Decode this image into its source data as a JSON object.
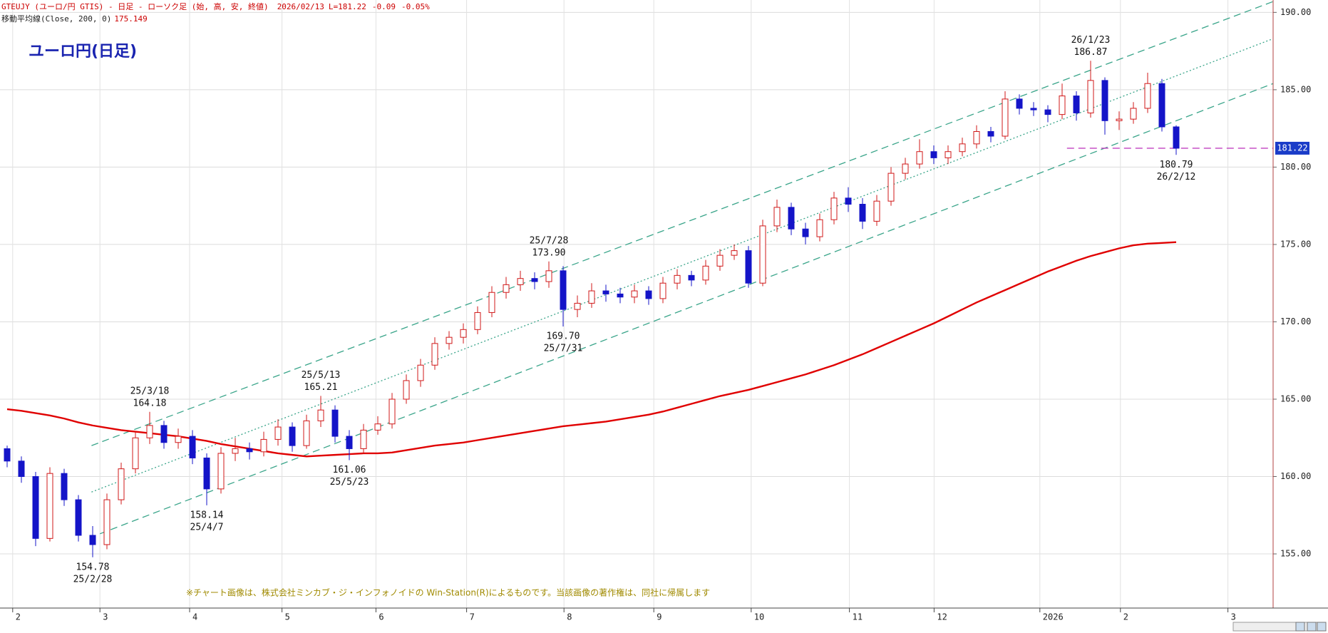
{
  "header": {
    "symbol": "GTEUJY (ユーロ/円 GTIS) - 日足 - ローソク足 (始, 高, 安, 終値)",
    "date": "2026/02/13",
    "last": "L=181.22",
    "change": "-0.09",
    "change_pct": "-0.05%"
  },
  "chart_data": {
    "type": "candlestick",
    "title": "ユーロ円(日足)",
    "open": [
      161.8,
      161.0,
      160.0,
      156.0,
      160.2,
      158.5,
      156.2,
      155.6,
      158.5,
      160.5,
      162.5,
      163.3,
      162.2,
      162.6,
      161.2,
      159.2,
      161.5,
      161.8,
      161.6,
      162.4,
      163.2,
      162.0,
      163.6,
      164.3,
      162.6,
      161.8,
      163.0,
      163.4,
      165.0,
      166.2,
      167.2,
      168.6,
      169.0,
      169.5,
      170.6,
      171.9,
      172.4,
      172.8,
      172.6,
      173.3,
      170.8,
      171.2,
      172.0,
      171.8,
      171.6,
      172.0,
      171.5,
      172.5,
      173.0,
      172.7,
      173.6,
      174.3,
      174.6,
      172.5,
      176.2,
      177.4,
      176.0,
      175.5,
      176.6,
      178.0,
      177.6,
      176.5,
      177.8,
      179.6,
      180.2,
      181.0,
      180.6,
      181.0,
      181.5,
      182.3,
      182.0,
      184.4,
      183.8,
      183.7,
      183.4,
      184.6,
      183.5,
      185.6,
      183.0,
      183.1,
      183.8,
      185.4,
      182.6
    ],
    "high": [
      162.0,
      161.3,
      160.3,
      160.6,
      160.5,
      158.8,
      156.8,
      158.9,
      160.9,
      162.9,
      164.18,
      163.6,
      163.1,
      163.0,
      161.5,
      161.9,
      162.5,
      162.2,
      162.9,
      163.7,
      163.5,
      164.0,
      165.21,
      164.6,
      163.0,
      163.4,
      163.9,
      165.4,
      166.6,
      167.6,
      169.0,
      169.4,
      169.9,
      171.0,
      172.3,
      172.9,
      173.3,
      173.2,
      173.9,
      173.6,
      171.7,
      172.5,
      172.4,
      172.2,
      172.4,
      172.3,
      172.9,
      173.4,
      173.3,
      174.0,
      174.7,
      175.0,
      174.9,
      176.6,
      177.9,
      177.7,
      176.4,
      177.0,
      178.4,
      178.7,
      178.0,
      178.2,
      180.0,
      180.6,
      181.8,
      181.4,
      181.4,
      181.9,
      182.7,
      182.6,
      184.9,
      184.7,
      184.2,
      184.0,
      185.4,
      184.9,
      186.87,
      185.8,
      183.6,
      184.2,
      186.1,
      185.7,
      182.7
    ],
    "low": [
      160.6,
      159.6,
      155.5,
      155.8,
      158.1,
      155.8,
      154.78,
      155.3,
      158.2,
      160.2,
      162.1,
      161.8,
      161.8,
      160.8,
      158.14,
      158.9,
      161.0,
      161.1,
      161.3,
      162.0,
      161.6,
      161.8,
      163.2,
      162.2,
      161.06,
      161.5,
      162.7,
      163.1,
      164.7,
      165.8,
      166.9,
      168.2,
      168.6,
      169.2,
      170.3,
      171.5,
      172.0,
      172.1,
      172.2,
      169.7,
      170.3,
      170.9,
      171.3,
      171.2,
      171.2,
      171.1,
      171.2,
      172.1,
      172.3,
      172.4,
      173.3,
      174.0,
      172.2,
      172.3,
      175.8,
      175.6,
      175.0,
      175.2,
      176.3,
      177.1,
      176.0,
      176.2,
      177.5,
      179.2,
      179.9,
      180.2,
      180.2,
      180.7,
      181.2,
      181.6,
      181.8,
      183.4,
      183.3,
      182.9,
      183.1,
      183.0,
      183.2,
      182.1,
      182.4,
      182.8,
      183.5,
      182.3,
      180.79
    ],
    "close": [
      161.0,
      160.0,
      156.0,
      160.2,
      158.5,
      156.2,
      155.6,
      158.5,
      160.5,
      162.5,
      163.3,
      162.2,
      162.6,
      161.2,
      159.2,
      161.5,
      161.8,
      161.6,
      162.4,
      163.2,
      162.0,
      163.6,
      164.3,
      162.6,
      161.8,
      163.0,
      163.4,
      165.0,
      166.2,
      167.2,
      168.6,
      169.0,
      169.5,
      170.6,
      171.9,
      172.4,
      172.8,
      172.6,
      173.3,
      170.8,
      171.2,
      172.0,
      171.8,
      171.6,
      172.0,
      171.5,
      172.5,
      173.0,
      172.7,
      173.6,
      174.3,
      174.6,
      172.5,
      176.2,
      177.4,
      176.0,
      175.5,
      176.6,
      178.0,
      177.6,
      176.5,
      177.8,
      179.6,
      180.2,
      181.0,
      180.6,
      181.0,
      181.5,
      182.3,
      182.0,
      184.4,
      183.8,
      183.7,
      183.4,
      184.6,
      183.5,
      185.6,
      183.0,
      183.1,
      183.8,
      185.4,
      182.6,
      181.22
    ],
    "up_color": "#d01818",
    "down_color": "#1414c8",
    "moving_average": {
      "name": "移動平均線(Close, 200, 0)",
      "color": "#e00000",
      "values": [
        164.35,
        164.25,
        164.1,
        163.95,
        163.75,
        163.5,
        163.3,
        163.15,
        163.0,
        162.9,
        162.8,
        162.7,
        162.6,
        162.45,
        162.3,
        162.1,
        161.95,
        161.8,
        161.65,
        161.5,
        161.4,
        161.3,
        161.35,
        161.4,
        161.45,
        161.5,
        161.5,
        161.55,
        161.7,
        161.85,
        162.0,
        162.1,
        162.2,
        162.35,
        162.5,
        162.65,
        162.8,
        162.95,
        163.1,
        163.25,
        163.35,
        163.45,
        163.55,
        163.7,
        163.85,
        164.0,
        164.2,
        164.45,
        164.7,
        164.95,
        165.2,
        165.4,
        165.6,
        165.85,
        166.1,
        166.35,
        166.6,
        166.9,
        167.2,
        167.55,
        167.9,
        168.3,
        168.7,
        169.1,
        169.5,
        169.9,
        170.35,
        170.8,
        171.25,
        171.65,
        172.05,
        172.45,
        172.85,
        173.25,
        173.6,
        173.95,
        174.25,
        174.5,
        174.75,
        174.95,
        175.05,
        175.1,
        175.149
      ]
    },
    "trend_lines": [
      {
        "x": [
          5.92,
          88.8
        ],
        "y": [
          162.0,
          190.7
        ],
        "color": "#3aa58a",
        "style": "dashed"
      },
      {
        "x": [
          5.92,
          88.8
        ],
        "y": [
          159.0,
          188.3
        ],
        "color": "#3aa58a",
        "style": "dotted"
      },
      {
        "x": [
          6.51,
          88.8
        ],
        "y": [
          156.3,
          185.4
        ],
        "color": "#3aa58a",
        "style": "dashed"
      },
      {
        "x": [
          74.34,
          88.8
        ],
        "y": [
          181.22,
          181.22
        ],
        "color": "#c040c0",
        "style": "dashed"
      }
    ],
    "annotations": [
      {
        "lines": [
          "25/3/18",
          "164.18"
        ]
      },
      {
        "lines": [
          "154.78",
          "25/2/28"
        ]
      },
      {
        "lines": [
          "158.14",
          "25/4/7"
        ]
      },
      {
        "lines": [
          "25/5/13",
          "165.21"
        ]
      },
      {
        "lines": [
          "161.06",
          "25/5/23"
        ]
      },
      {
        "lines": [
          "25/7/28",
          "173.90"
        ]
      },
      {
        "lines": [
          "169.70",
          "25/7/31"
        ]
      },
      {
        "lines": [
          "26/1/23",
          "186.87"
        ]
      },
      {
        "lines": [
          "180.79",
          "26/2/12"
        ]
      }
    ],
    "xlim": [
      -0.5,
      88.8
    ],
    "xticks": [
      {
        "value": 0.39,
        "label": "2"
      },
      {
        "value": 6.51,
        "label": "3"
      },
      {
        "value": 12.8,
        "label": "4"
      },
      {
        "value": 19.28,
        "label": "5"
      },
      {
        "value": 25.87,
        "label": "6"
      },
      {
        "value": 32.23,
        "label": "7"
      },
      {
        "value": 39.06,
        "label": "8"
      },
      {
        "value": 45.36,
        "label": "9"
      },
      {
        "value": 52.19,
        "label": "10"
      },
      {
        "value": 59.08,
        "label": "11"
      },
      {
        "value": 65.02,
        "label": "12"
      },
      {
        "value": 72.44,
        "label": "2026"
      },
      {
        "value": 78.09,
        "label": "2"
      },
      {
        "value": 85.63,
        "label": "3"
      }
    ],
    "ylim": [
      151.5,
      190.8
    ],
    "yticks": [
      {
        "value": 155,
        "label": "155.00"
      },
      {
        "value": 160,
        "label": "160.00"
      },
      {
        "value": 165,
        "label": "165.00"
      },
      {
        "value": 170,
        "label": "170.00"
      },
      {
        "value": 175,
        "label": "175.00"
      },
      {
        "value": 180,
        "label": "180.00"
      },
      {
        "value": 185,
        "label": "185.00"
      },
      {
        "value": 190,
        "label": "190.00"
      }
    ],
    "grid": true,
    "footnote": "※チャート画像は、株式会社ミンカブ・ジ・インフォノイドの Win-Station(R)によるものです。当該画像の著作権は、同社に帰属します"
  }
}
